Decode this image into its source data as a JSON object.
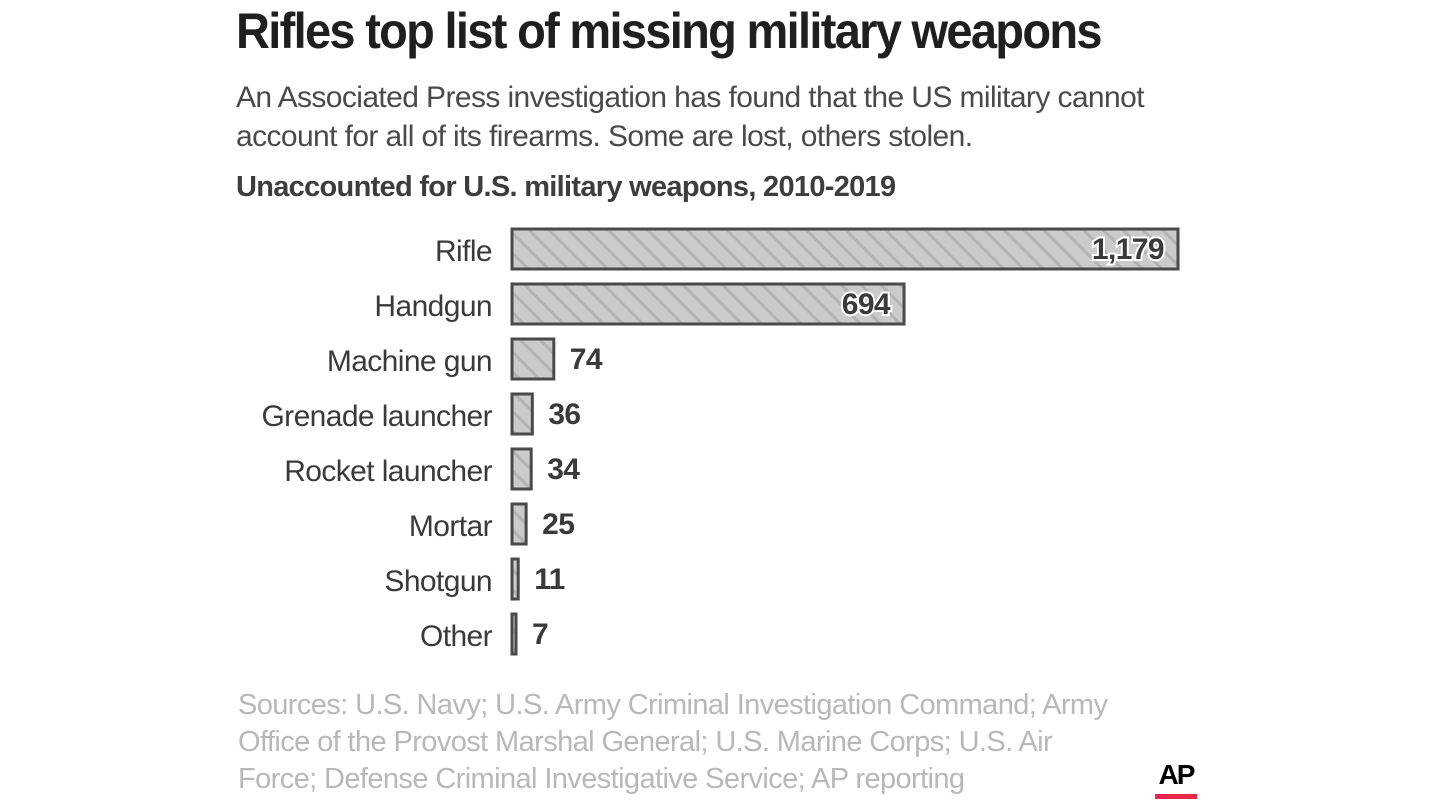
{
  "headline": "Rifles top list of missing military weapons",
  "subtitle": "An Associated Press investigation has found that the US military cannot account for all of its firearms. Some are lost, others stolen.",
  "sources": "Sources: U.S. Navy; U.S. Army Criminal Investigation Command; Army Office of  the Provost Marshal General; U.S. Marine Corps; U.S. Air Force; Defense Criminal Investigative Service; AP reporting",
  "logo": {
    "text": "AP",
    "accent_color": "#e8274b"
  },
  "chart_data": {
    "type": "bar",
    "orientation": "horizontal",
    "title": "Unaccounted for U.S. military weapons, 2010-2019",
    "categories": [
      "Rifle",
      "Handgun",
      "Machine gun",
      "Grenade launcher",
      "Rocket launcher",
      "Mortar",
      "Shotgun",
      "Other"
    ],
    "values": [
      1179,
      694,
      74,
      36,
      34,
      25,
      11,
      7
    ],
    "value_labels": [
      "1,179",
      "694",
      "74",
      "36",
      "34",
      "25",
      "11",
      "7"
    ],
    "xlabel": "",
    "ylabel": "",
    "xlim": [
      0,
      1179
    ],
    "grid": false,
    "legend": "none",
    "bar_fill": "#cbcbcb",
    "bar_hatch": "#b3b3b3",
    "bar_stroke": "#4a4a4a"
  }
}
